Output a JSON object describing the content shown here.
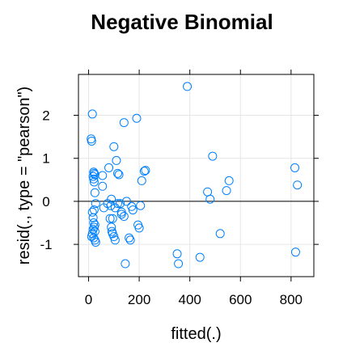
{
  "chart_data": {
    "type": "scatter",
    "title": "Negative Binomial",
    "xlabel": "fitted(.)",
    "ylabel": "resid(., type = \"pearson\")",
    "xlim": [
      -40,
      890
    ],
    "ylim": [
      -1.75,
      2.95
    ],
    "xticks": [
      0,
      200,
      400,
      600,
      800
    ],
    "yticks": [
      -1,
      0,
      1,
      2
    ],
    "grid": true,
    "reference_line_y": 0,
    "colors": {
      "points": "#0080ff",
      "grid": "#e6e6e6",
      "frame": "#000000",
      "refline": "#000000"
    },
    "x": [
      15,
      10,
      12,
      20,
      22,
      25,
      18,
      20,
      22,
      25,
      28,
      15,
      18,
      20,
      22,
      25,
      15,
      12,
      20,
      25,
      28,
      18,
      22,
      25,
      55,
      55,
      60,
      75,
      80,
      85,
      90,
      92,
      95,
      100,
      105,
      110,
      115,
      120,
      125,
      130,
      100,
      115,
      95,
      88,
      90,
      105,
      130,
      140,
      145,
      150,
      160,
      165,
      170,
      175,
      195,
      200,
      210,
      220,
      225,
      190,
      140,
      205,
      390,
      350,
      355,
      440,
      470,
      480,
      490,
      520,
      545,
      555,
      815,
      825,
      818
    ],
    "y": [
      2.03,
      1.45,
      1.4,
      0.68,
      0.65,
      0.62,
      0.58,
      0.52,
      0.45,
      0.2,
      -0.05,
      -0.25,
      -0.38,
      -0.5,
      -0.6,
      -0.7,
      -0.75,
      -0.82,
      -0.85,
      -0.9,
      -0.95,
      -0.65,
      -0.2,
      -0.55,
      0.6,
      0.35,
      -0.15,
      -0.05,
      0.78,
      -0.4,
      -0.6,
      -0.7,
      -0.75,
      -0.82,
      -0.9,
      0.95,
      0.65,
      0.62,
      -0.05,
      -0.25,
      1.27,
      -0.05,
      -0.4,
      -0.1,
      0.05,
      -0.15,
      -0.3,
      -0.35,
      -1.45,
      0.0,
      -0.85,
      -0.9,
      -0.12,
      -0.2,
      -0.55,
      -0.62,
      0.48,
      0.7,
      0.72,
      1.93,
      1.83,
      -0.1,
      2.67,
      -1.22,
      -1.45,
      -1.3,
      0.22,
      0.05,
      1.05,
      -0.75,
      0.25,
      0.48,
      0.78,
      0.38,
      -1.18
    ]
  }
}
